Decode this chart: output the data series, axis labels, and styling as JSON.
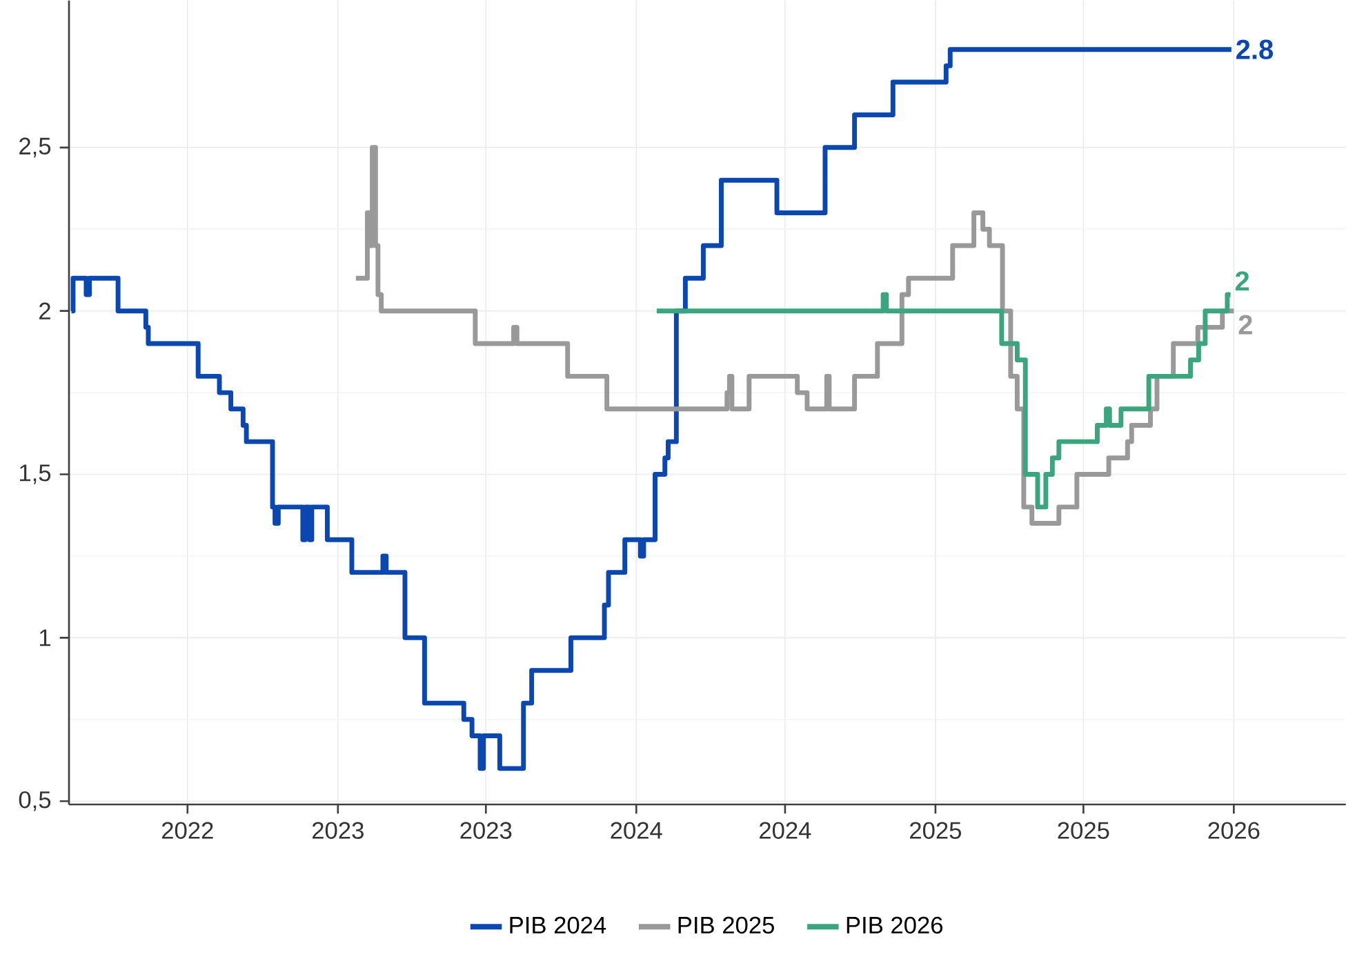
{
  "chart_data": {
    "type": "step",
    "x": [
      "2022-02-09",
      "2022-02-11",
      "2022-02-27",
      "2022-03-03",
      "2022-04-07",
      "2022-05-11",
      "2022-05-14",
      "2022-07-14",
      "2022-08-09",
      "2022-08-23",
      "2022-09-07",
      "2022-09-11",
      "2022-10-13",
      "2022-10-16",
      "2022-10-20",
      "2022-11-19",
      "2022-11-22",
      "2022-11-27",
      "2022-11-30",
      "2022-12-19",
      "2023-01-18",
      "2023-02-25",
      "2023-03-01",
      "2023-03-24",
      "2023-04-17",
      "2023-06-04",
      "2023-06-14",
      "2023-06-24",
      "2023-06-28",
      "2023-07-18",
      "2023-08-16",
      "2023-08-26",
      "2023-10-13",
      "2023-11-23",
      "2023-11-28",
      "2023-12-18",
      "2024-01-06",
      "2024-01-10",
      "2024-01-24",
      "2024-02-05",
      "2024-02-09",
      "2024-02-19",
      "2024-03-01",
      "2024-03-23",
      "2024-04-14",
      "2024-06-21",
      "2024-08-19",
      "2024-09-24",
      "2024-11-10",
      "2025-01-14",
      "2025-01-19",
      "2025-12-29"
    ],
    "series": [
      {
        "name": "PIB 2024",
        "color": "#0a47b0",
        "values": [
          2.0,
          2.1,
          2.05,
          2.1,
          2.0,
          1.95,
          1.9,
          1.8,
          1.75,
          1.7,
          1.65,
          1.6,
          1.4,
          1.35,
          1.4,
          1.3,
          1.4,
          1.3,
          1.4,
          1.3,
          1.2,
          1.25,
          1.2,
          1.0,
          0.8,
          0.75,
          0.7,
          0.6,
          0.7,
          0.6,
          0.8,
          0.9,
          1.0,
          1.1,
          1.2,
          1.3,
          1.25,
          1.3,
          1.5,
          1.55,
          1.6,
          2.0,
          2.1,
          2.2,
          2.4,
          2.3,
          2.5,
          2.6,
          2.7,
          2.75,
          2.8,
          2.8
        ]
      },
      {
        "name": "PIB 2025",
        "color": "#999999",
        "x": [
          "2023-01-23",
          "2023-02-06",
          "2023-02-09",
          "2023-02-12",
          "2023-02-16",
          "2023-02-19",
          "2023-02-23",
          "2023-06-18",
          "2023-08-04",
          "2023-08-08",
          "2023-10-09",
          "2023-11-26",
          "2024-04-21",
          "2024-04-24",
          "2024-04-27",
          "2024-05-18",
          "2024-07-16",
          "2024-07-28",
          "2024-08-21",
          "2024-08-24",
          "2024-09-24",
          "2024-10-22",
          "2024-11-21",
          "2024-11-29",
          "2025-01-22",
          "2025-02-17",
          "2025-02-28",
          "2025-03-08",
          "2025-03-24",
          "2025-04-03",
          "2025-04-11",
          "2025-04-19",
          "2025-04-29",
          "2025-06-01",
          "2025-06-23",
          "2025-08-01",
          "2025-08-24",
          "2025-08-29",
          "2025-09-21",
          "2025-09-29",
          "2025-10-19",
          "2025-11-18",
          "2025-12-18",
          "2026-01-01"
        ],
        "values": [
          2.1,
          2.3,
          2.2,
          2.5,
          2.2,
          2.05,
          2.0,
          1.9,
          1.95,
          1.9,
          1.8,
          1.7,
          1.75,
          1.8,
          1.7,
          1.8,
          1.75,
          1.7,
          1.8,
          1.7,
          1.8,
          1.9,
          2.05,
          2.1,
          2.2,
          2.3,
          2.25,
          2.2,
          2.0,
          1.8,
          1.7,
          1.4,
          1.35,
          1.4,
          1.5,
          1.55,
          1.6,
          1.65,
          1.7,
          1.8,
          1.9,
          1.95,
          2.0,
          2.0
        ]
      },
      {
        "name": "PIB 2026",
        "color": "#3aa57f",
        "x": [
          "2024-01-26",
          "2024-10-29",
          "2024-11-02",
          "2025-03-23",
          "2025-04-11",
          "2025-04-21",
          "2025-05-06",
          "2025-05-16",
          "2025-05-24",
          "2025-06-01",
          "2025-07-18",
          "2025-07-29",
          "2025-08-02",
          "2025-08-16",
          "2025-09-19",
          "2025-11-09",
          "2025-11-19",
          "2025-11-27",
          "2025-12-24",
          "2025-12-28"
        ],
        "values": [
          2.0,
          2.05,
          2.0,
          1.9,
          1.85,
          1.5,
          1.4,
          1.5,
          1.55,
          1.6,
          1.65,
          1.7,
          1.65,
          1.7,
          1.8,
          1.85,
          1.9,
          2.0,
          2.05,
          2.05
        ]
      }
    ],
    "annotations": [
      {
        "text": "2.8",
        "x": "2025-12-29",
        "y": 2.8
      },
      {
        "text": "2",
        "x": "2026-01-01",
        "y": 2.0
      },
      {
        "text": "2",
        "x": "2025-12-28",
        "y": 2.05
      }
    ],
    "xlim": [
      "2022-02-06",
      "2026-05-18"
    ],
    "xticks": [
      {
        "value": "2022-07-01",
        "label": "2022"
      },
      {
        "value": "2023-01-01",
        "label": "2023"
      },
      {
        "value": "2023-07-01",
        "label": "2023"
      },
      {
        "value": "2024-01-01",
        "label": "2024"
      },
      {
        "value": "2024-07-01",
        "label": "2024"
      },
      {
        "value": "2025-01-01",
        "label": "2025"
      },
      {
        "value": "2025-07-01",
        "label": "2025"
      },
      {
        "value": "2026-01-01",
        "label": "2026"
      }
    ],
    "ylim": [
      0.49,
      2.95
    ],
    "yticks": [
      {
        "value": 0.5,
        "label": "0,5"
      },
      1,
      {
        "value": 1.5,
        "label": "1,5"
      },
      2,
      {
        "value": 2.5,
        "label": "2,5"
      }
    ],
    "grid": true,
    "legend": "bottom",
    "line_style": "solid",
    "marker": "none"
  }
}
